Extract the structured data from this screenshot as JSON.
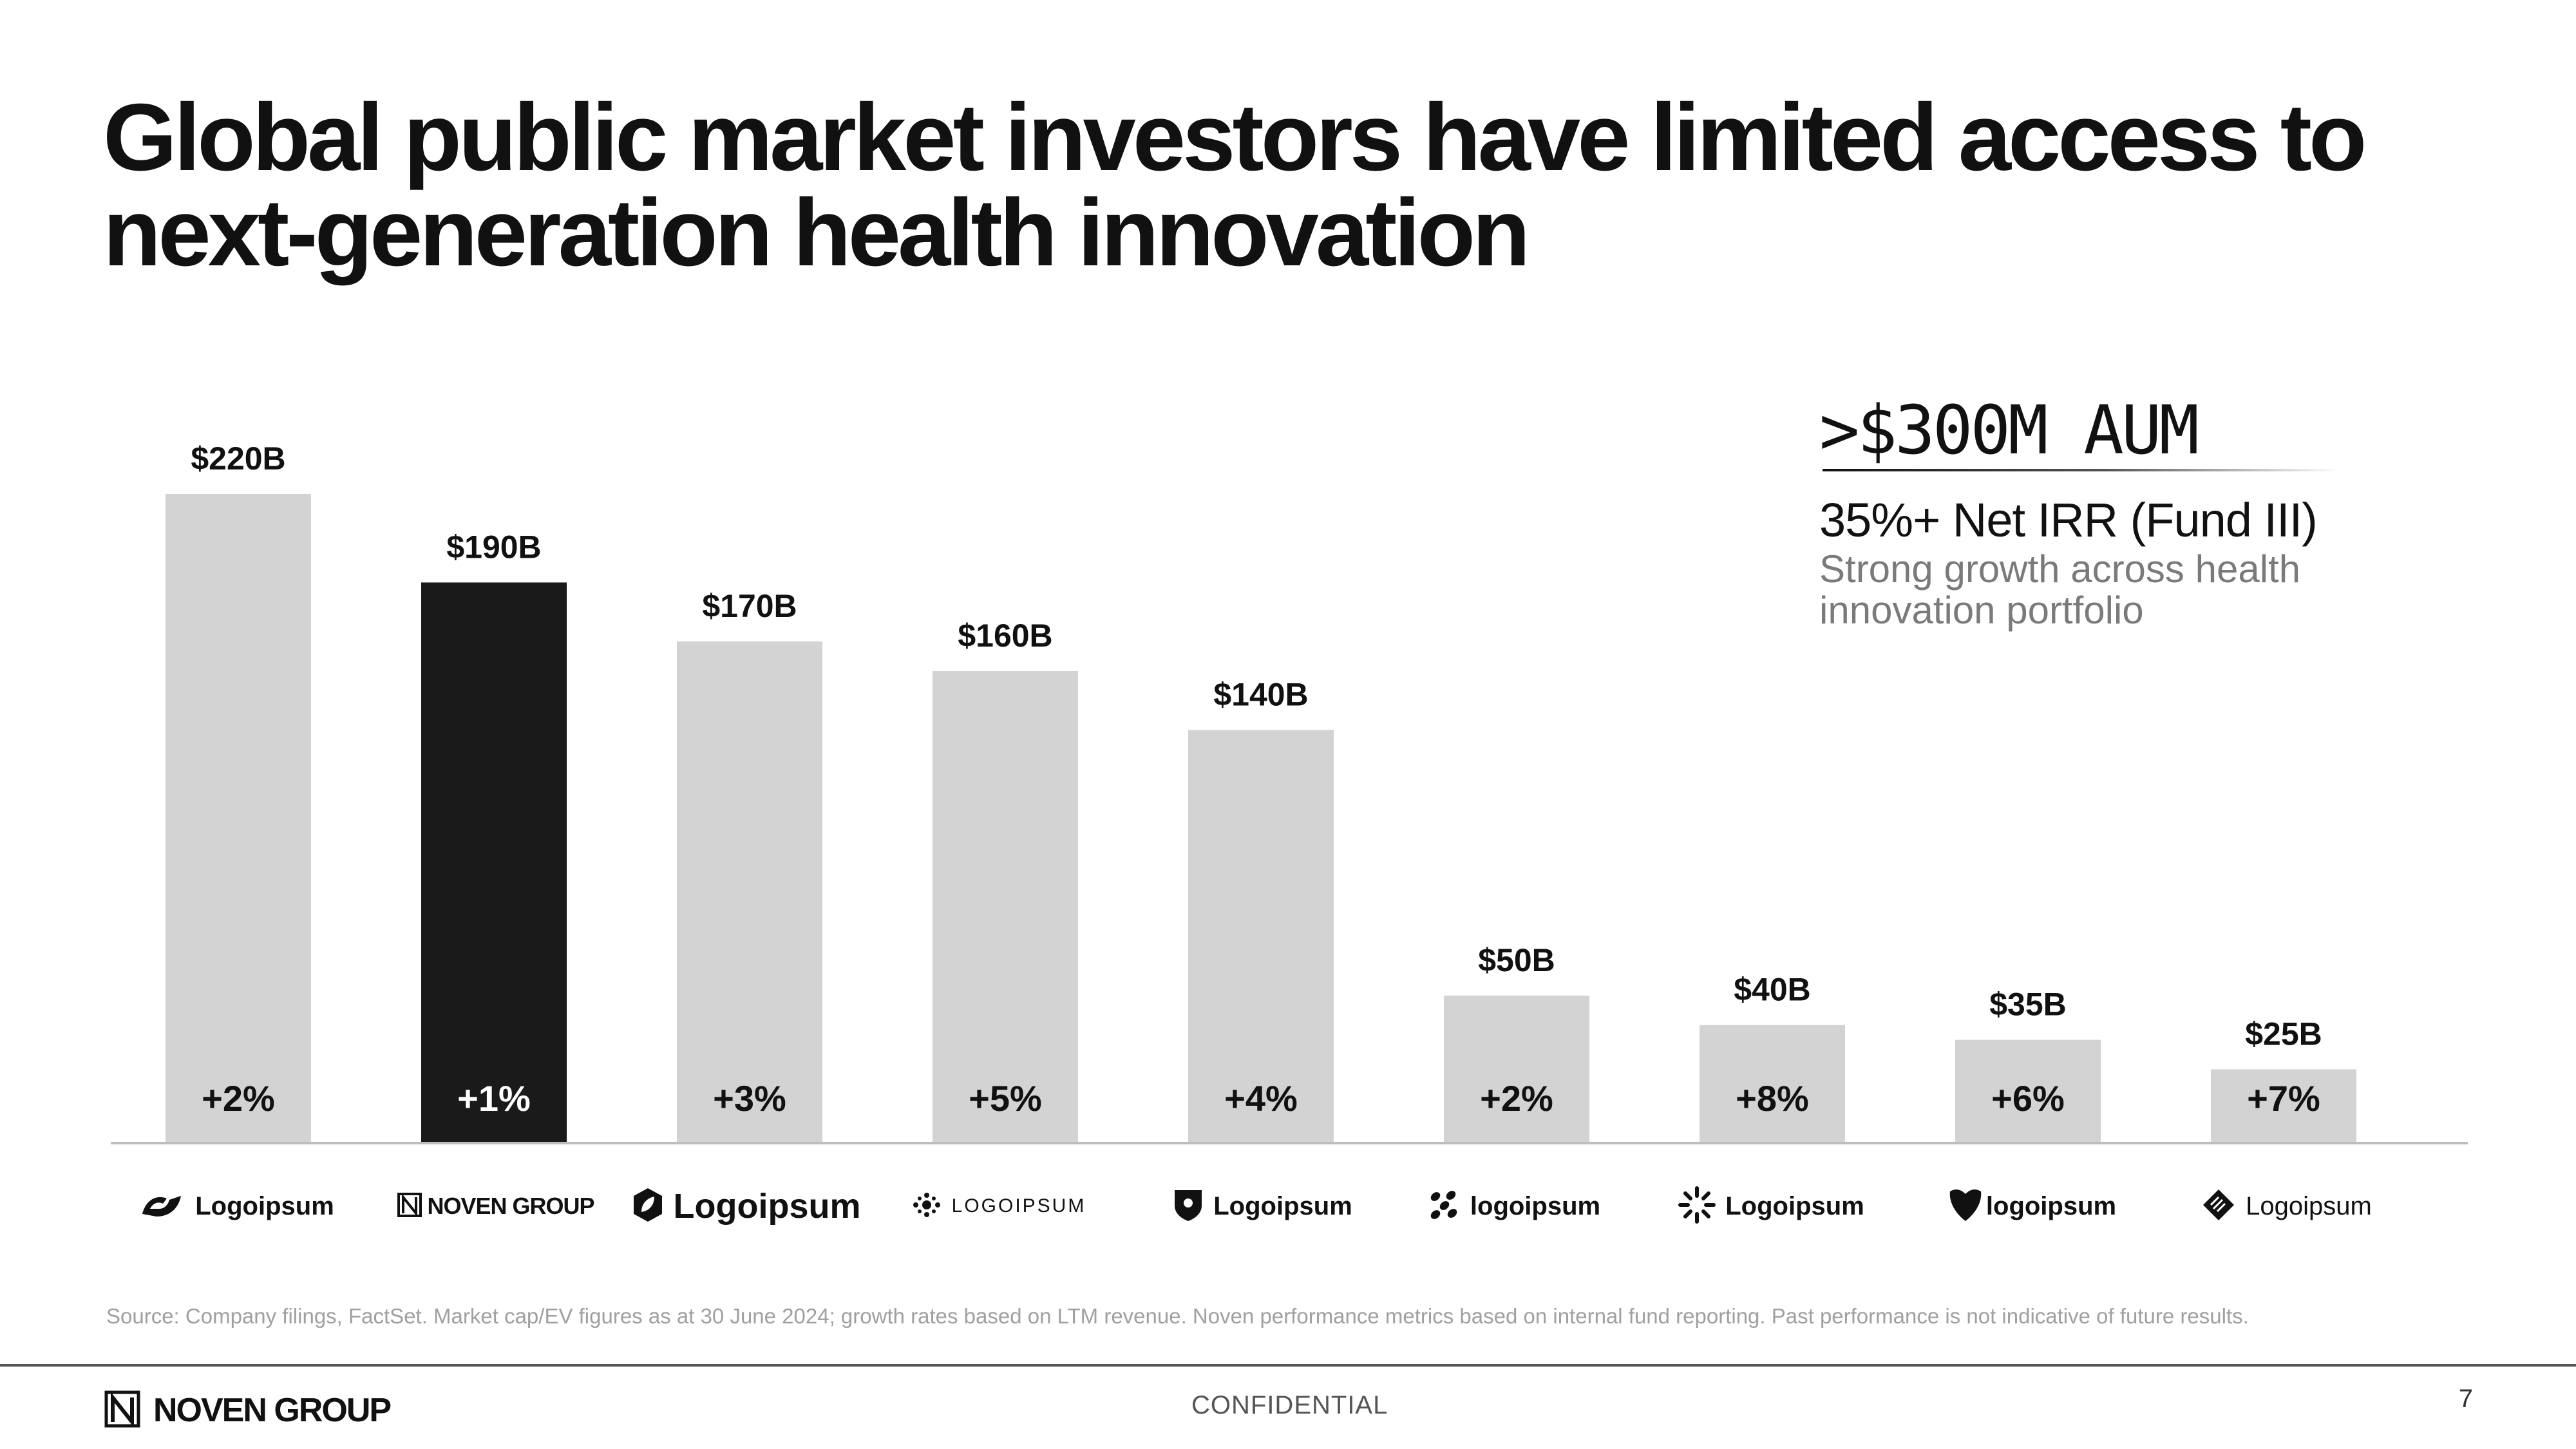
{
  "title": {
    "line1": "Global public market investors have limited access to",
    "line2": "next-generation health innovation"
  },
  "chart_data": {
    "type": "bar",
    "categories": [
      "Logoipsum",
      "NOVEN GROUP",
      "Logoipsum",
      "LOGOIPSUM",
      "Logoipsum",
      "logoipsum",
      "Logoipsum",
      "logoipsum",
      "Logoipsum"
    ],
    "values": [
      220,
      190,
      170,
      160,
      140,
      50,
      40,
      35,
      25
    ],
    "value_labels": [
      "$220B",
      "$190B",
      "$170B",
      "$160B",
      "$140B",
      "$50B",
      "$40B",
      "$35B",
      "$25B"
    ],
    "growth_labels": [
      "+2%",
      "+1%",
      "+3%",
      "+5%",
      "+4%",
      "+2%",
      "+8%",
      "+6%",
      "+7%"
    ],
    "highlight_index": 1,
    "colors": {
      "bar": "#d3d3d3",
      "highlight": "#1a1a1a",
      "baseline": "#bdbdbd",
      "text": "#111111",
      "highlight_text": "#ffffff"
    },
    "ylim": [
      0,
      220
    ],
    "grid": false,
    "xlabel": "",
    "ylabel": ""
  },
  "kpi": {
    "aum": ">$300M AUM",
    "irr": "35%+ Net IRR (Fund III)",
    "sub": "Strong growth across health innovation portfolio"
  },
  "logos": [
    {
      "text": "Logoipsum",
      "icon": "swoosh-logo-icon"
    },
    {
      "text": "NOVEN GROUP",
      "icon": "noven-n-logo-icon"
    },
    {
      "text": "Logoipsum",
      "icon": "hexagon-leaf-logo-icon"
    },
    {
      "text": "LOGOIPSUM",
      "icon": "dotted-star-logo-icon"
    },
    {
      "text": "Logoipsum",
      "icon": "shield-logo-icon"
    },
    {
      "text": "logoipsum",
      "icon": "scattered-dots-logo-icon"
    },
    {
      "text": "Logoipsum",
      "icon": "sunburst-logo-icon"
    },
    {
      "text": "logoipsum",
      "icon": "heart-shield-logo-icon"
    },
    {
      "text": "Logoipsum",
      "icon": "layered-diamond-logo-icon"
    }
  ],
  "source": "Source: Company filings, FactSet. Market cap/EV figures as at 30 June 2024; growth rates based on LTM revenue. Noven performance metrics based on internal fund reporting. Past performance is not indicative of future results.",
  "footer": {
    "brand": "NOVEN GROUP",
    "confidential": "CONFIDENTIAL",
    "page_number": "7"
  }
}
